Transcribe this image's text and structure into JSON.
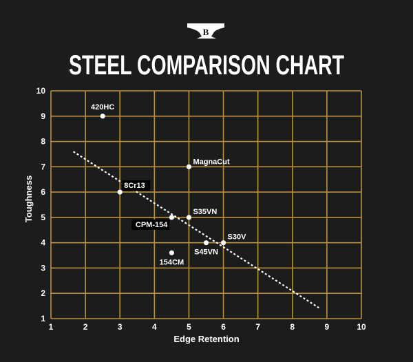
{
  "brand": {
    "logo_letter": "B",
    "logo_icon": "anvil-icon"
  },
  "colors": {
    "background": "#1c1c1c",
    "grid": "#b8913e",
    "points": "#ffffff",
    "trendline": "#ffffff",
    "label_box": "#000000"
  },
  "chart_data": {
    "type": "scatter",
    "title": "STEEL COMPARISON CHART",
    "xlabel": "Edge Retention",
    "ylabel": "Toughness",
    "xlim": [
      1,
      10
    ],
    "ylim": [
      1,
      10
    ],
    "xticks": [
      1,
      2,
      3,
      4,
      5,
      6,
      7,
      8,
      9,
      10
    ],
    "yticks": [
      1,
      2,
      3,
      4,
      5,
      6,
      7,
      8,
      9,
      10
    ],
    "grid": true,
    "points": [
      {
        "label": "420HC",
        "x": 2.5,
        "y": 9
      },
      {
        "label": "MagnaCut",
        "x": 5,
        "y": 7
      },
      {
        "label": "8Cr13",
        "x": 3,
        "y": 6
      },
      {
        "label": "CPM-154",
        "x": 4.5,
        "y": 5
      },
      {
        "label": "S35VN",
        "x": 5,
        "y": 5
      },
      {
        "label": "S30V",
        "x": 6,
        "y": 4
      },
      {
        "label": "S45VN",
        "x": 5.5,
        "y": 4
      },
      {
        "label": "154CM",
        "x": 4.5,
        "y": 3.6
      }
    ],
    "trendline": {
      "x": [
        1.65,
        8.8
      ],
      "y": [
        7.6,
        1.4
      ],
      "style": "dotted"
    }
  }
}
